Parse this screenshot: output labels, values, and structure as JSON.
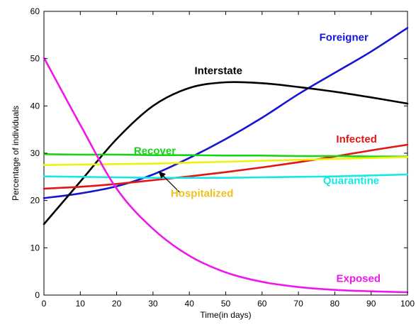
{
  "chart_data": {
    "type": "line",
    "xlabel": "Time(in days)",
    "ylabel": "Percentage of individuals",
    "xlim": [
      0,
      100
    ],
    "ylim": [
      0,
      60
    ],
    "xticks": [
      0,
      10,
      20,
      30,
      40,
      50,
      60,
      70,
      80,
      90,
      100
    ],
    "yticks": [
      0,
      10,
      20,
      30,
      40,
      50,
      60
    ],
    "grid": false,
    "x": [
      0,
      10,
      20,
      30,
      40,
      50,
      60,
      70,
      80,
      90,
      100
    ],
    "series": [
      {
        "name": "Foreigner",
        "color": "#1515d6",
        "values": [
          20.5,
          21.5,
          23.0,
          25.5,
          29.0,
          33.0,
          37.5,
          42.5,
          47.0,
          51.5,
          56.5
        ]
      },
      {
        "name": "Interstate",
        "color": "#000000",
        "values": [
          15.0,
          24.0,
          33.0,
          40.0,
          43.8,
          45.0,
          44.8,
          44.0,
          43.0,
          41.8,
          40.5
        ]
      },
      {
        "name": "Infected",
        "color": "#e41515",
        "values": [
          22.5,
          22.9,
          23.5,
          24.3,
          25.1,
          26.0,
          27.0,
          28.1,
          29.3,
          30.6,
          31.8
        ]
      },
      {
        "name": "Recover",
        "color": "#18d418",
        "values": [
          29.8,
          29.7,
          29.7,
          29.6,
          29.6,
          29.5,
          29.5,
          29.4,
          29.4,
          29.3,
          29.3
        ]
      },
      {
        "name": "Hospitalized",
        "color": "#f0f00a",
        "values": [
          27.5,
          27.6,
          27.7,
          27.8,
          28.0,
          28.2,
          28.4,
          28.6,
          28.8,
          29.0,
          29.2
        ]
      },
      {
        "name": "Quarantine",
        "color": "#15e8e8",
        "values": [
          25.1,
          25.0,
          24.9,
          24.8,
          24.8,
          24.8,
          24.9,
          25.0,
          25.1,
          25.3,
          25.5
        ]
      },
      {
        "name": "Exposed",
        "color": "#ee18ee",
        "values": [
          50.2,
          36.0,
          22.5,
          14.0,
          8.3,
          4.8,
          2.8,
          1.7,
          1.1,
          0.8,
          0.6
        ]
      }
    ],
    "annotations": [
      {
        "text": "Foreigner",
        "color": "#1515d6",
        "x": 82.5,
        "y": 54.5
      },
      {
        "text": "Interstate",
        "color": "#000000",
        "x": 48,
        "y": 47.5
      },
      {
        "text": "Infected",
        "color": "#e41515",
        "x": 86,
        "y": 33
      },
      {
        "text": "Recover",
        "color": "#18d418",
        "x": 30.5,
        "y": 30.5
      },
      {
        "text": "Hospitalized",
        "color": "#f0c020",
        "x": 43.5,
        "y": 21.5
      },
      {
        "text": "Quarantine",
        "color": "#15e8e8",
        "x": 84.5,
        "y": 24.2
      },
      {
        "text": "Exposed",
        "color": "#ee18ee",
        "x": 86.5,
        "y": 3.5
      }
    ],
    "arrow": {
      "from": [
        37.5,
        21.6
      ],
      "to": [
        31.5,
        26.2
      ],
      "color": "#000000"
    }
  }
}
